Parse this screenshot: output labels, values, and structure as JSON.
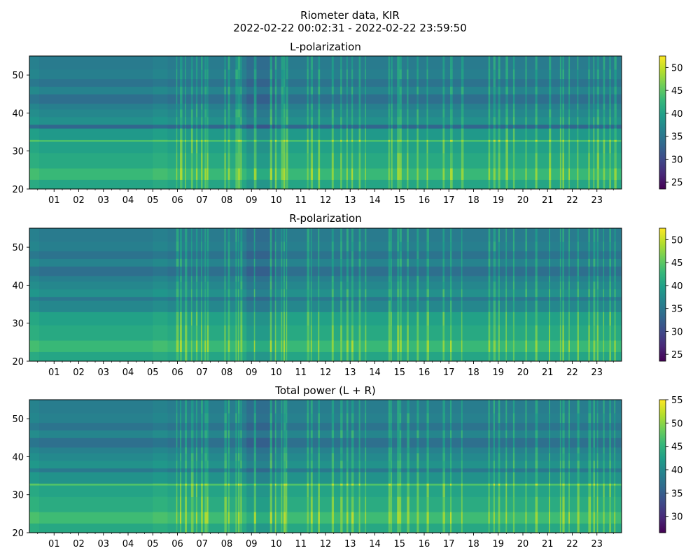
{
  "figure": {
    "title": "Riometer data, KIR",
    "subtitle": "2022-02-22 00:02:31 - 2022-02-22 23:59:50"
  },
  "colormap": {
    "name": "viridis",
    "stops": [
      "#440154",
      "#482878",
      "#3e4989",
      "#31688e",
      "#26828e",
      "#1f9e89",
      "#35b779",
      "#6ece58",
      "#b5de2b",
      "#fde725"
    ]
  },
  "chart_data": [
    {
      "type": "heatmap",
      "title": "L-polarization",
      "xlabel": "",
      "ylabel": "",
      "xlim": [
        0,
        24
      ],
      "ylim": [
        20,
        55
      ],
      "x_ticks": [
        "01",
        "02",
        "03",
        "04",
        "05",
        "06",
        "07",
        "08",
        "09",
        "10",
        "11",
        "12",
        "13",
        "14",
        "15",
        "16",
        "17",
        "18",
        "19",
        "20",
        "21",
        "22",
        "23"
      ],
      "y_ticks": [
        20,
        30,
        40,
        50
      ],
      "colorbar": {
        "min": 23.5,
        "max": 52.5,
        "ticks": [
          25,
          30,
          35,
          40,
          45,
          50
        ]
      },
      "bands": [
        {
          "y0": 20,
          "y1": 22.5,
          "value": 40.5
        },
        {
          "y0": 22.5,
          "y1": 25.5,
          "value": 43
        },
        {
          "y0": 25.5,
          "y1": 29.5,
          "value": 41
        },
        {
          "y0": 29.5,
          "y1": 32.5,
          "value": 40
        },
        {
          "y0": 32.5,
          "y1": 33,
          "value": 44
        },
        {
          "y0": 33,
          "y1": 36,
          "value": 39
        },
        {
          "y0": 36,
          "y1": 37,
          "value": 33
        },
        {
          "y0": 37,
          "y1": 39,
          "value": 38
        },
        {
          "y0": 39,
          "y1": 41,
          "value": 37
        },
        {
          "y0": 41,
          "y1": 42.5,
          "value": 36
        },
        {
          "y0": 42.5,
          "y1": 45,
          "value": 34
        },
        {
          "y0": 45,
          "y1": 47,
          "value": 36.5
        },
        {
          "y0": 47,
          "y1": 49,
          "value": 34.5
        },
        {
          "y0": 49,
          "y1": 51.5,
          "value": 36
        },
        {
          "y0": 51.5,
          "y1": 55,
          "value": 35.5
        }
      ],
      "dark_periods": [
        {
          "x0": 8.8,
          "x1": 10.0,
          "delta": -2.5
        },
        {
          "x0": 0.0,
          "x1": 0.4,
          "delta": 1
        },
        {
          "x0": 5.0,
          "x1": 5.6,
          "delta": 1
        }
      ],
      "spikes": [
        5.95,
        6.1,
        6.3,
        6.55,
        6.75,
        6.95,
        7.1,
        7.2,
        7.9,
        8.05,
        8.35,
        8.45,
        8.55,
        9.1,
        9.75,
        9.95,
        10.2,
        10.3,
        10.4,
        11.25,
        11.4,
        11.7,
        12.25,
        12.6,
        12.85,
        13.05,
        13.35,
        13.6,
        14.55,
        14.65,
        14.9,
        15.0,
        15.3,
        15.7,
        16.1,
        16.75,
        17.05,
        17.5,
        18.6,
        18.8,
        19.0,
        19.3,
        19.6,
        20.1,
        20.5,
        21.05,
        21.5,
        21.6,
        21.85,
        22.2,
        22.65,
        22.85,
        23.0,
        23.25,
        23.5,
        23.7
      ],
      "spike_delta": 6
    },
    {
      "type": "heatmap",
      "title": "R-polarization",
      "xlabel": "",
      "ylabel": "",
      "xlim": [
        0,
        24
      ],
      "ylim": [
        20,
        55
      ],
      "x_ticks": [
        "01",
        "02",
        "03",
        "04",
        "05",
        "06",
        "07",
        "08",
        "09",
        "10",
        "11",
        "12",
        "13",
        "14",
        "15",
        "16",
        "17",
        "18",
        "19",
        "20",
        "21",
        "22",
        "23"
      ],
      "y_ticks": [
        20,
        30,
        40,
        50
      ],
      "colorbar": {
        "min": 23.5,
        "max": 52.5,
        "ticks": [
          25,
          30,
          35,
          40,
          45,
          50
        ]
      },
      "bands": [
        {
          "y0": 20,
          "y1": 22.5,
          "value": 40.5
        },
        {
          "y0": 22.5,
          "y1": 25.5,
          "value": 43
        },
        {
          "y0": 25.5,
          "y1": 29.5,
          "value": 41
        },
        {
          "y0": 29.5,
          "y1": 33,
          "value": 40
        },
        {
          "y0": 33,
          "y1": 36,
          "value": 37
        },
        {
          "y0": 36,
          "y1": 37,
          "value": 35
        },
        {
          "y0": 37,
          "y1": 39,
          "value": 38
        },
        {
          "y0": 39,
          "y1": 41,
          "value": 37
        },
        {
          "y0": 41,
          "y1": 42.5,
          "value": 36
        },
        {
          "y0": 42.5,
          "y1": 45,
          "value": 34
        },
        {
          "y0": 45,
          "y1": 47,
          "value": 36.5
        },
        {
          "y0": 47,
          "y1": 49,
          "value": 34.5
        },
        {
          "y0": 49,
          "y1": 51.5,
          "value": 36
        },
        {
          "y0": 51.5,
          "y1": 55,
          "value": 35.5
        }
      ],
      "dark_periods": [
        {
          "x0": 8.8,
          "x1": 10.0,
          "delta": -2.5
        },
        {
          "x0": 0.0,
          "x1": 0.4,
          "delta": 1
        },
        {
          "x0": 5.0,
          "x1": 5.6,
          "delta": 1
        }
      ],
      "spikes": [
        5.95,
        6.1,
        6.3,
        6.55,
        6.75,
        6.95,
        7.1,
        7.2,
        7.9,
        8.05,
        8.35,
        8.45,
        8.55,
        9.1,
        9.75,
        9.95,
        10.2,
        10.3,
        10.4,
        11.25,
        11.4,
        11.7,
        12.25,
        12.6,
        12.85,
        13.05,
        13.35,
        13.6,
        14.55,
        14.65,
        14.9,
        15.0,
        15.3,
        15.7,
        16.1,
        16.75,
        17.05,
        17.5,
        18.6,
        18.8,
        19.0,
        19.3,
        19.6,
        20.1,
        20.5,
        21.05,
        21.5,
        21.6,
        21.85,
        22.2,
        22.65,
        22.85,
        23.0,
        23.25,
        23.5,
        23.7
      ],
      "spike_delta": 6
    },
    {
      "type": "heatmap",
      "title": "Total power (L + R)",
      "xlabel": "",
      "ylabel": "",
      "xlim": [
        0,
        24
      ],
      "ylim": [
        20,
        55
      ],
      "x_ticks": [
        "01",
        "02",
        "03",
        "04",
        "05",
        "06",
        "07",
        "08",
        "09",
        "10",
        "11",
        "12",
        "13",
        "14",
        "15",
        "16",
        "17",
        "18",
        "19",
        "20",
        "21",
        "22",
        "23"
      ],
      "y_ticks": [
        20,
        30,
        40,
        50
      ],
      "colorbar": {
        "min": 26.5,
        "max": 55,
        "ticks": [
          30,
          35,
          40,
          45,
          50,
          55
        ]
      },
      "bands": [
        {
          "y0": 20,
          "y1": 22.5,
          "value": 43.5
        },
        {
          "y0": 22.5,
          "y1": 25.5,
          "value": 46
        },
        {
          "y0": 25.5,
          "y1": 29.5,
          "value": 44
        },
        {
          "y0": 29.5,
          "y1": 32.5,
          "value": 43
        },
        {
          "y0": 32.5,
          "y1": 33,
          "value": 47
        },
        {
          "y0": 33,
          "y1": 36,
          "value": 41
        },
        {
          "y0": 36,
          "y1": 37,
          "value": 38
        },
        {
          "y0": 37,
          "y1": 39,
          "value": 41
        },
        {
          "y0": 39,
          "y1": 41,
          "value": 40
        },
        {
          "y0": 41,
          "y1": 42.5,
          "value": 39
        },
        {
          "y0": 42.5,
          "y1": 45,
          "value": 37
        },
        {
          "y0": 45,
          "y1": 47,
          "value": 39.5
        },
        {
          "y0": 47,
          "y1": 49,
          "value": 37.5
        },
        {
          "y0": 49,
          "y1": 51.5,
          "value": 39
        },
        {
          "y0": 51.5,
          "y1": 55,
          "value": 38.5
        }
      ],
      "dark_periods": [
        {
          "x0": 8.8,
          "x1": 10.0,
          "delta": -2.5
        },
        {
          "x0": 0.0,
          "x1": 0.4,
          "delta": 1
        },
        {
          "x0": 5.0,
          "x1": 5.6,
          "delta": 1
        }
      ],
      "spikes": [
        5.95,
        6.1,
        6.3,
        6.55,
        6.75,
        6.95,
        7.1,
        7.2,
        7.9,
        8.05,
        8.35,
        8.45,
        8.55,
        9.1,
        9.75,
        9.95,
        10.2,
        10.3,
        10.4,
        11.25,
        11.4,
        11.7,
        12.25,
        12.6,
        12.85,
        13.05,
        13.35,
        13.6,
        14.55,
        14.65,
        14.9,
        15.0,
        15.3,
        15.7,
        16.1,
        16.75,
        17.05,
        17.5,
        18.6,
        18.8,
        19.0,
        19.3,
        19.6,
        20.1,
        20.5,
        21.05,
        21.5,
        21.6,
        21.85,
        22.2,
        22.65,
        22.85,
        23.0,
        23.25,
        23.5,
        23.7
      ],
      "spike_delta": 6
    }
  ]
}
